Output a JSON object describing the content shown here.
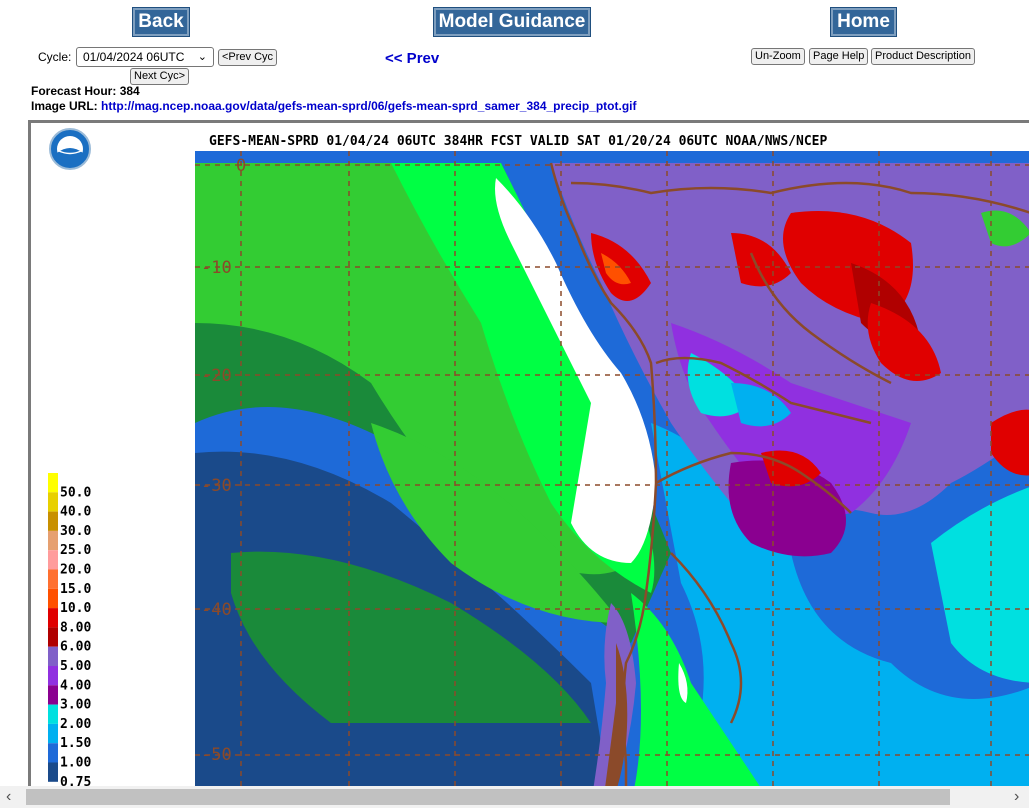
{
  "nav": {
    "back_label": "Back",
    "guidance_label": "Model Guidance",
    "home_label": "Home"
  },
  "controls": {
    "cycle_label": "Cycle:",
    "cycle_value": "01/04/2024 06UTC",
    "prev_cyc_label": "<Prev Cyc",
    "next_cyc_label": "Next Cyc>",
    "prev_link": "<< Prev",
    "unzoom_label": "Un-Zoom",
    "page_help_label": "Page Help",
    "product_desc_label": "Product Description"
  },
  "info": {
    "forecast_hour_label": "Forecast Hour:",
    "forecast_hour": "384",
    "image_url_label": "Image URL:",
    "image_url": "http://mag.ncep.noaa.gov/data/gefs-mean-sprd/06/gefs-mean-sprd_samer_384_precip_ptot.gif"
  },
  "map": {
    "title": "GEFS-MEAN-SPRD 01/04/24 06UTC 384HR FCST VALID SAT 01/20/24 06UTC NOAA/NWS/NCEP",
    "lat_labels": [
      "0",
      "-10",
      "-20",
      "-30",
      "-40",
      "-50"
    ],
    "legend": [
      {
        "label": "50.0",
        "color": "#ffff00"
      },
      {
        "label": "40.0",
        "color": "#e8d000"
      },
      {
        "label": "30.0",
        "color": "#c89000"
      },
      {
        "label": "25.0",
        "color": "#e6a070"
      },
      {
        "label": "20.0",
        "color": "#ff9c9c"
      },
      {
        "label": "15.0",
        "color": "#ff7030"
      },
      {
        "label": "10.0",
        "color": "#ff5000"
      },
      {
        "label": "8.00",
        "color": "#e00000"
      },
      {
        "label": "6.00",
        "color": "#b00000"
      },
      {
        "label": "5.00",
        "color": "#8060c8"
      },
      {
        "label": "4.00",
        "color": "#9030e0"
      },
      {
        "label": "3.00",
        "color": "#8a0090"
      },
      {
        "label": "2.00",
        "color": "#00e0e0"
      },
      {
        "label": "1.50",
        "color": "#00b0f0"
      },
      {
        "label": "1.00",
        "color": "#1e6ad8"
      },
      {
        "label": "0.75",
        "color": "#1a4a8a"
      }
    ],
    "colors": {
      "ocean_dark": "#1a4a8a",
      "ocean_mid": "#1e6ad8",
      "ocean_light": "#00b0f0",
      "green_dark": "#1a8a3a",
      "green_mid": "#33cc33",
      "green_light": "#00ff44",
      "border": "#8b4a2a"
    }
  }
}
